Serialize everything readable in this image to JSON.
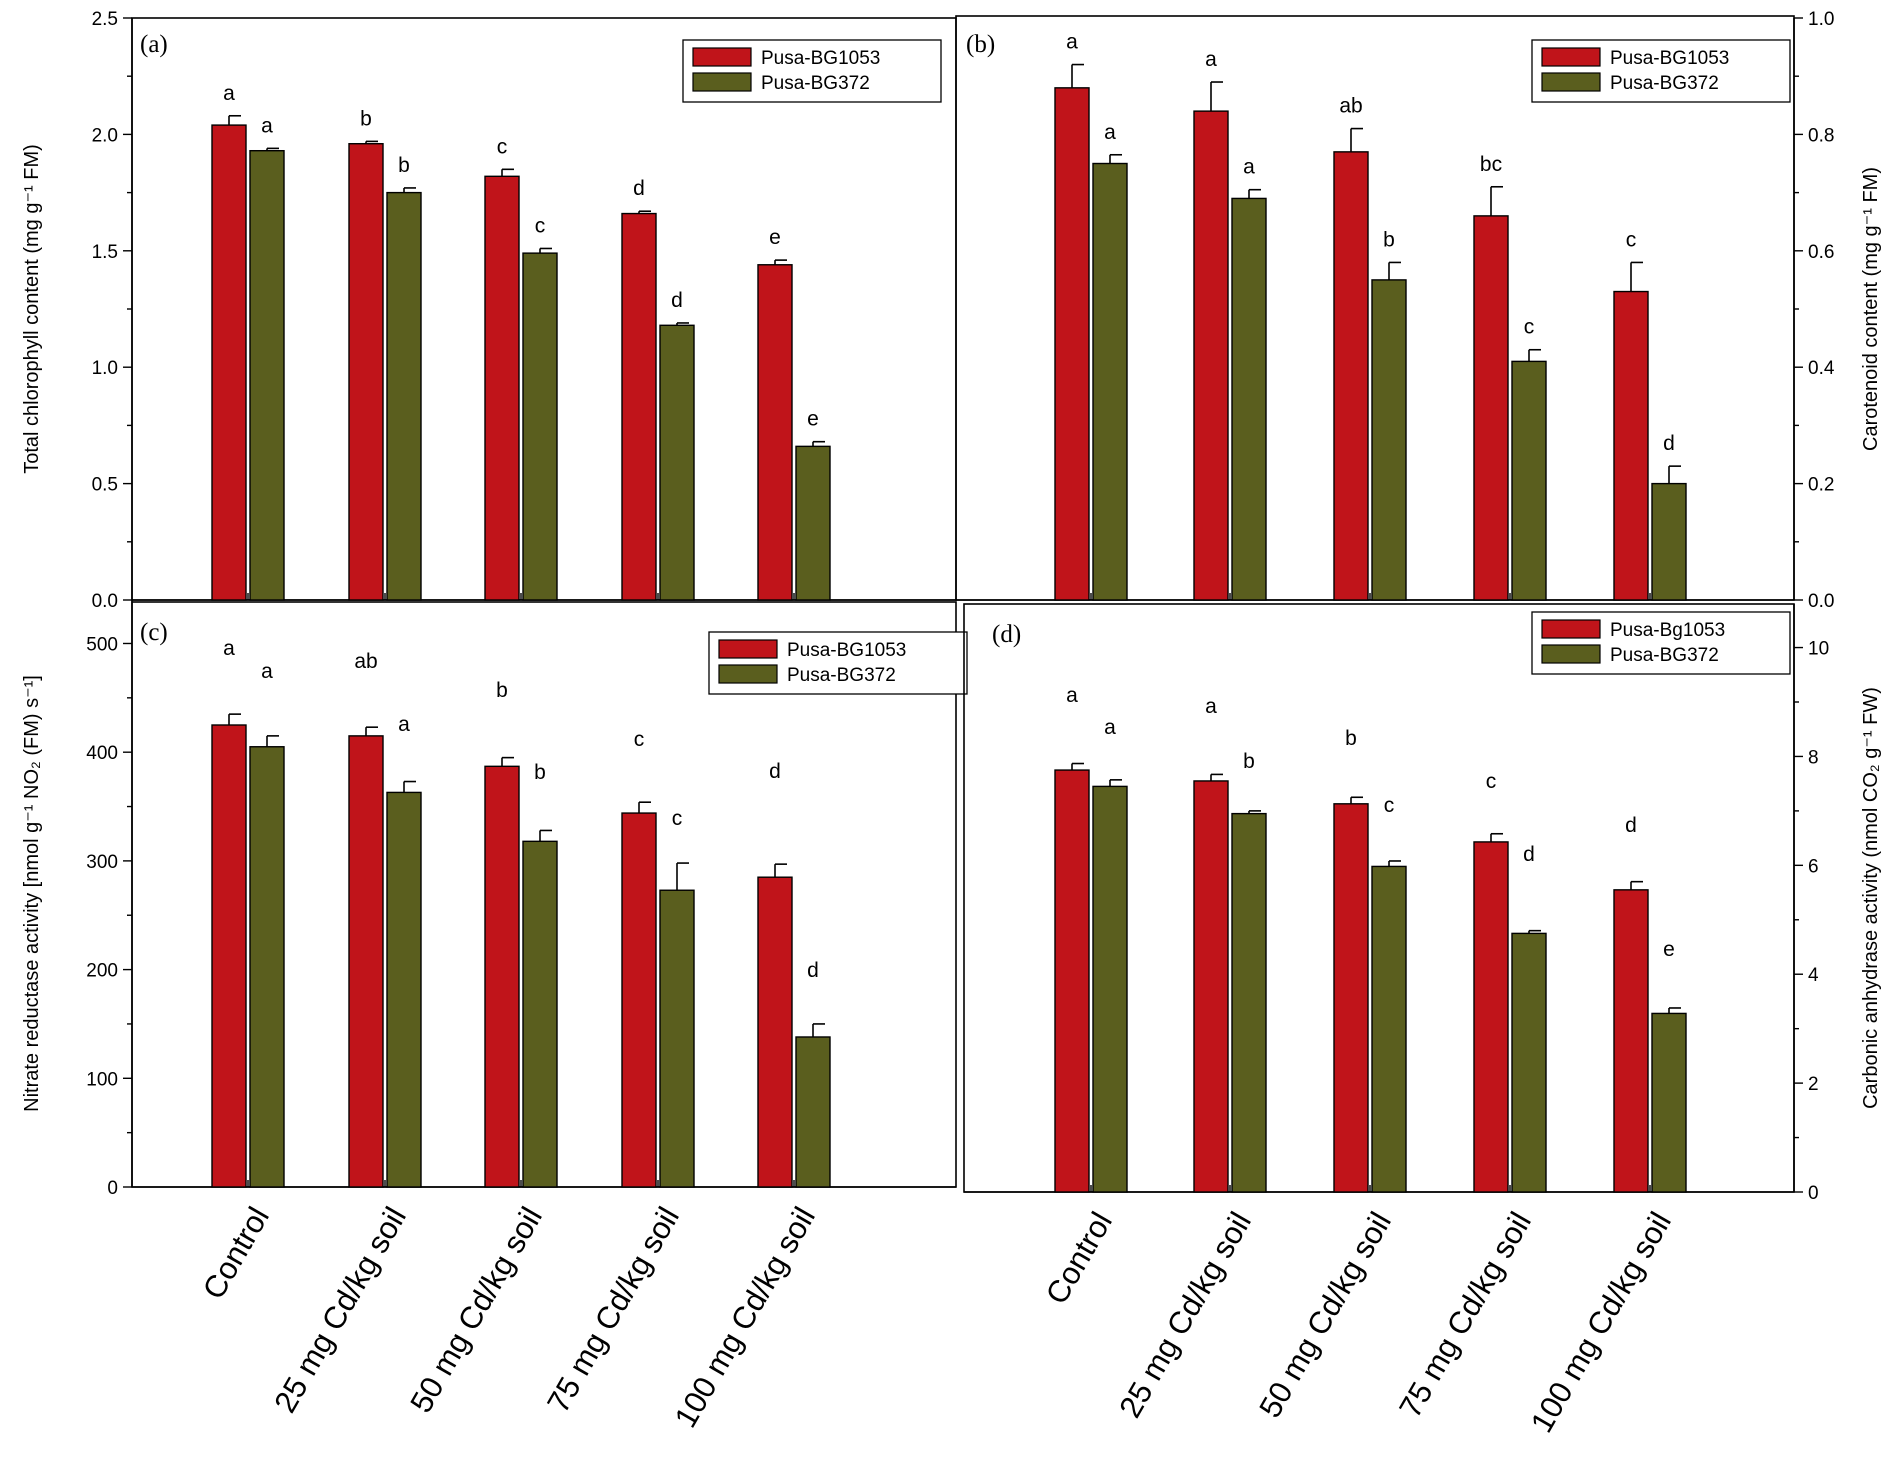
{
  "chart_data": [
    {
      "id": "a",
      "type": "bar",
      "panel_label": "(a)",
      "categories": [
        "Control",
        "25 mg Cd/kg soil",
        "50 mg Cd/kg soil",
        "75 mg Cd/kg soil",
        "100 mg Cd/kg soil"
      ],
      "ylabel": "Total chlorophyll content (mg g⁻¹ FM)",
      "ylim": [
        0,
        2.5
      ],
      "yticks": [
        "0.0",
        "0.5",
        "1.0",
        "1.5",
        "2.0",
        "2.5"
      ],
      "legend": [
        "Pusa-BG1053",
        "Pusa-BG372"
      ],
      "series": [
        {
          "name": "Pusa-BG1053",
          "color": "#c0141a",
          "values": [
            2.04,
            1.96,
            1.82,
            1.66,
            1.44
          ],
          "errors": [
            0.04,
            0.01,
            0.03,
            0.01,
            0.02
          ],
          "letters": [
            "a",
            "b",
            "c",
            "d",
            "e"
          ]
        },
        {
          "name": "Pusa-BG372",
          "color": "#5a5e1e",
          "values": [
            1.93,
            1.75,
            1.49,
            1.18,
            0.66
          ],
          "errors": [
            0.01,
            0.02,
            0.02,
            0.01,
            0.02
          ],
          "letters": [
            "a",
            "b",
            "c",
            "d",
            "e"
          ]
        }
      ]
    },
    {
      "id": "b",
      "type": "bar",
      "panel_label": "(b)",
      "categories": [
        "Control",
        "25 mg Cd/kg soil",
        "50 mg Cd/kg soil",
        "75 mg Cd/kg soil",
        "100 mg Cd/kg soil"
      ],
      "ylabel": "Carotenoid content (mg g⁻¹ FM)",
      "ylim": [
        0,
        1.0
      ],
      "yticks": [
        "0.0",
        "0.2",
        "0.4",
        "0.6",
        "0.8",
        "1.0"
      ],
      "legend": [
        "Pusa-BG1053",
        "Pusa-BG372"
      ],
      "series": [
        {
          "name": "Pusa-BG1053",
          "color": "#c0141a",
          "values": [
            0.88,
            0.84,
            0.77,
            0.66,
            0.53
          ],
          "errors": [
            0.04,
            0.05,
            0.04,
            0.05,
            0.05
          ],
          "letters": [
            "a",
            "a",
            "ab",
            "bc",
            "c"
          ]
        },
        {
          "name": "Pusa-BG372",
          "color": "#5a5e1e",
          "values": [
            0.75,
            0.69,
            0.55,
            0.41,
            0.2
          ],
          "errors": [
            0.015,
            0.015,
            0.03,
            0.02,
            0.03
          ],
          "letters": [
            "a",
            "a",
            "b",
            "c",
            "d"
          ]
        }
      ]
    },
    {
      "id": "c",
      "type": "bar",
      "panel_label": "(c)",
      "categories": [
        "Control",
        "25 mg Cd/kg soil",
        "50 mg Cd/kg soil",
        "75 mg Cd/kg soil",
        "100 mg Cd/kg soil"
      ],
      "ylabel": "Nitrate reductase activity [nmol g⁻¹ NO₂ (FM) s⁻¹]",
      "ylim": [
        0,
        540
      ],
      "yticks": [
        "0",
        "100",
        "200",
        "300",
        "400",
        "500"
      ],
      "legend": [
        "Pusa-BG1053",
        "Pusa-BG372"
      ],
      "series": [
        {
          "name": "Pusa-BG1053",
          "color": "#c0141a",
          "values": [
            425,
            415,
            387,
            344,
            285
          ],
          "errors": [
            10,
            8,
            8,
            10,
            12
          ],
          "letters": [
            "a",
            "ab",
            "b",
            "c",
            "d"
          ]
        },
        {
          "name": "Pusa-BG372",
          "color": "#5a5e1e",
          "values": [
            405,
            363,
            318,
            273,
            138
          ],
          "errors": [
            10,
            10,
            10,
            25,
            12
          ],
          "letters": [
            "a",
            "a",
            "b",
            "c",
            "d"
          ]
        }
      ]
    },
    {
      "id": "d",
      "type": "bar",
      "panel_label": "(d)",
      "categories": [
        "Control",
        "25 mg Cd/kg soil",
        "50 mg Cd/kg soil",
        "75 mg Cd/kg soil",
        "100 mg Cd/kg soil"
      ],
      "ylabel": "Carbonic anhydrase activity (nmol CO₂ g⁻¹ FW)",
      "ylim": [
        0,
        10.8
      ],
      "yticks": [
        "0",
        "2",
        "4",
        "6",
        "8",
        "10"
      ],
      "legend": [
        "Pusa-Bg1053",
        "Pusa-BG372"
      ],
      "series": [
        {
          "name": "Pusa-Bg1053",
          "color": "#c0141a",
          "values": [
            7.75,
            7.55,
            7.13,
            6.43,
            5.55
          ],
          "errors": [
            0.12,
            0.12,
            0.12,
            0.15,
            0.15
          ],
          "letters": [
            "a",
            "a",
            "b",
            "c",
            "d"
          ]
        },
        {
          "name": "Pusa-BG372",
          "color": "#5a5e1e",
          "values": [
            7.45,
            6.95,
            5.98,
            4.75,
            3.28
          ],
          "errors": [
            0.12,
            0.05,
            0.1,
            0.05,
            0.1
          ],
          "letters": [
            "a",
            "b",
            "c",
            "d",
            "e"
          ]
        }
      ]
    }
  ]
}
